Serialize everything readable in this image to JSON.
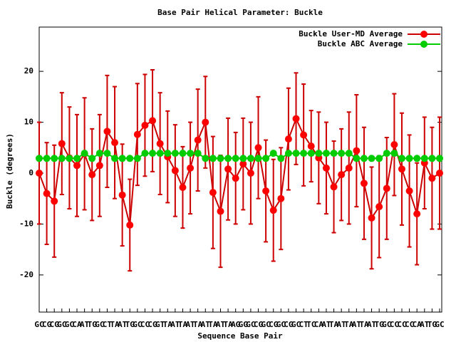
{
  "chart_data": {
    "type": "errorline",
    "title": "Base Pair Helical Parameter: Buckle",
    "x_label": "Sequence Base Pair",
    "y_label": "Buckle (degrees)",
    "categories": [
      "GC",
      "CG",
      "CG",
      "GC",
      "GC",
      "CA",
      "AT",
      "TG",
      "GC",
      "CT",
      "TA",
      "AT",
      "TG",
      "GC",
      "CC",
      "CG",
      "GT",
      "TA",
      "AT",
      "TA",
      "AT",
      "TA",
      "AT",
      "TA",
      "AT",
      "TA",
      "AG",
      "GG",
      "GC",
      "CG",
      "GC",
      "CG",
      "GC",
      "CG",
      "GC",
      "CT",
      "TC",
      "CA",
      "AT",
      "TA",
      "AT",
      "TA",
      "AT",
      "TA",
      "AT",
      "TG",
      "GC",
      "CC",
      "CC",
      "CC",
      "CA",
      "AT",
      "TG",
      "GC"
    ],
    "series": [
      {
        "name": "Buckle User-MD Average",
        "color": "#ff0000",
        "line_color": "#cc0000",
        "values": [
          0,
          -4,
          -5.5,
          5.8,
          3,
          1.5,
          3.8,
          -0.3,
          1.5,
          8.2,
          6,
          -4.3,
          -10.2,
          7.6,
          9.4,
          10.3,
          5.8,
          3.2,
          0.5,
          -2.8,
          1,
          6.5,
          10,
          -3.8,
          -7.5,
          0.8,
          -1,
          1.8,
          0,
          5,
          -3.5,
          -7.3,
          -5,
          6.7,
          10.7,
          7.5,
          5.3,
          3,
          1,
          -2.7,
          -0.3,
          1,
          4.4,
          -2,
          -8.8,
          -6.6,
          -3,
          5.6,
          0.8,
          -3.5,
          -8,
          2,
          -1,
          0
        ],
        "errors": [
          10,
          10,
          11,
          10,
          10,
          10,
          11,
          9,
          10,
          11,
          11,
          10,
          9,
          10,
          10,
          10,
          10,
          9,
          9,
          8,
          9,
          10,
          9,
          11,
          11,
          10,
          9,
          9,
          10,
          10,
          10,
          10,
          10,
          10,
          9,
          10,
          7,
          9,
          9,
          9,
          9,
          11,
          11,
          11,
          10,
          10,
          10,
          10,
          11,
          11,
          10,
          9,
          10,
          11
        ]
      },
      {
        "name": "Buckle ABC Average",
        "color": "#00cc00",
        "values": [
          2.9,
          2.9,
          2.9,
          2.9,
          2.9,
          2.9,
          3.9,
          2.9,
          3.9,
          3.9,
          2.9,
          2.9,
          2.9,
          2.9,
          3.9,
          3.9,
          3.9,
          3.9,
          3.9,
          3.9,
          3.9,
          3.9,
          2.9,
          2.9,
          2.9,
          2.9,
          2.9,
          2.9,
          2.9,
          2.9,
          2.9,
          3.9,
          2.9,
          3.9,
          3.9,
          3.9,
          3.9,
          3.9,
          3.9,
          3.9,
          3.9,
          3.9,
          2.9,
          2.9,
          2.9,
          2.9,
          3.9,
          3.9,
          2.9,
          2.9,
          2.9,
          2.9,
          2.9,
          2.9
        ]
      }
    ],
    "ylim": [
      -27.3,
      28.7
    ],
    "yticks": [
      -20,
      -10,
      0,
      10,
      20
    ],
    "legend": "top-right"
  }
}
